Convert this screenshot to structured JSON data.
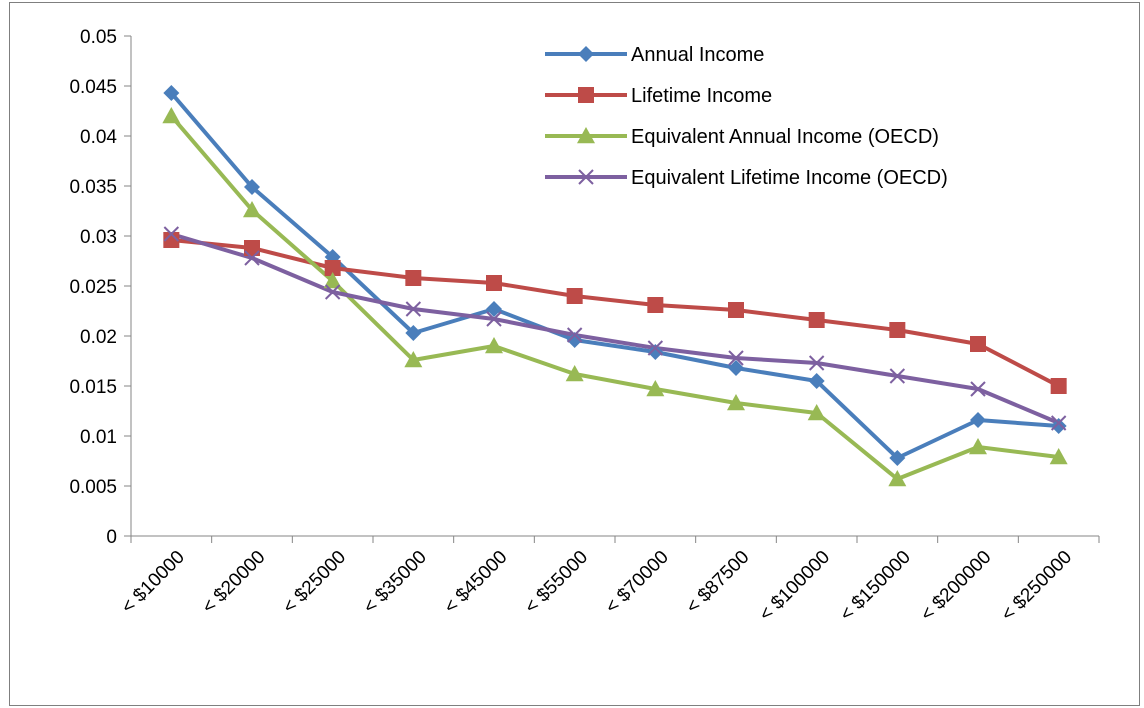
{
  "chart_data": {
    "type": "line",
    "title": "",
    "xlabel": "",
    "ylabel": "",
    "categories": [
      "< $10000",
      "< $20000",
      "< $25000",
      "< $35000",
      "< $45000",
      "< $55000",
      "< $70000",
      "< $87500",
      "< $100000",
      "< $150000",
      "< $200000",
      "< $250000"
    ],
    "ylim": [
      0,
      0.05
    ],
    "yticks": [
      "0",
      "0.005",
      "0.01",
      "0.015",
      "0.02",
      "0.025",
      "0.03",
      "0.035",
      "0.04",
      "0.045",
      "0.05"
    ],
    "grid": false,
    "legend_position": "top-right",
    "series": [
      {
        "name": "Annual Income",
        "color": "#4a7ebb",
        "marker": "diamond",
        "values": [
          0.0443,
          0.0349,
          0.0279,
          0.0203,
          0.0227,
          0.0196,
          0.0184,
          0.0168,
          0.0155,
          0.0078,
          0.0116,
          0.011
        ]
      },
      {
        "name": "Lifetime Income",
        "color": "#be4b48",
        "marker": "square",
        "values": [
          0.0296,
          0.0288,
          0.0268,
          0.0258,
          0.0253,
          0.024,
          0.0231,
          0.0226,
          0.0216,
          0.0206,
          0.0192,
          0.015
        ]
      },
      {
        "name": "Equivalent Annual Income (OECD)",
        "color": "#98b954",
        "marker": "triangle",
        "values": [
          0.042,
          0.0326,
          0.0255,
          0.0176,
          0.019,
          0.0162,
          0.0147,
          0.0133,
          0.0123,
          0.0057,
          0.0089,
          0.0079
        ]
      },
      {
        "name": "Equivalent Lifetime Income (OECD)",
        "color": "#7d60a0",
        "marker": "x",
        "values": [
          0.0302,
          0.0278,
          0.0244,
          0.0227,
          0.0217,
          0.0201,
          0.0188,
          0.0178,
          0.0173,
          0.016,
          0.0147,
          0.0113
        ]
      }
    ]
  }
}
